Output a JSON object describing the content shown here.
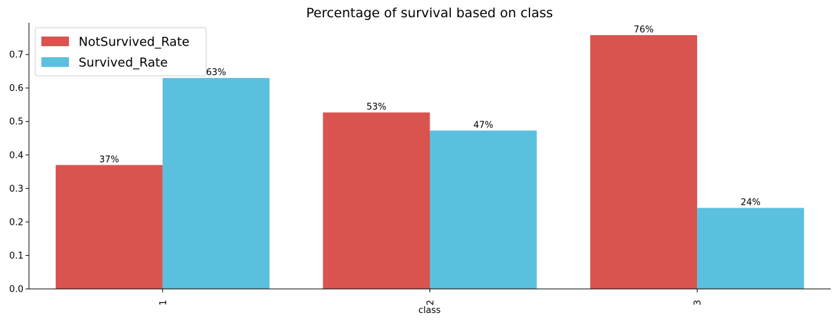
{
  "chart_data": {
    "type": "bar",
    "title": "Percentage of survival based on class",
    "xlabel": "class",
    "ylabel": "",
    "categories": [
      "1",
      "2",
      "3"
    ],
    "series": [
      {
        "name": "NotSurvived_Rate",
        "color": "#d9534f",
        "values": [
          0.37,
          0.527,
          0.758
        ],
        "labels": [
          "37%",
          "53%",
          "76%"
        ]
      },
      {
        "name": "Survived_Rate",
        "color": "#5bc0de",
        "values": [
          0.63,
          0.473,
          0.242
        ],
        "labels": [
          "63%",
          "47%",
          "24%"
        ]
      }
    ],
    "ylim": [
      0,
      0.795
    ],
    "yticks": [
      0.0,
      0.1,
      0.2,
      0.3,
      0.4,
      0.5,
      0.6,
      0.7
    ],
    "ytick_labels": [
      "0.0",
      "0.1",
      "0.2",
      "0.3",
      "0.4",
      "0.5",
      "0.6",
      "0.7"
    ],
    "legend_position": "top-left",
    "grid": false
  }
}
